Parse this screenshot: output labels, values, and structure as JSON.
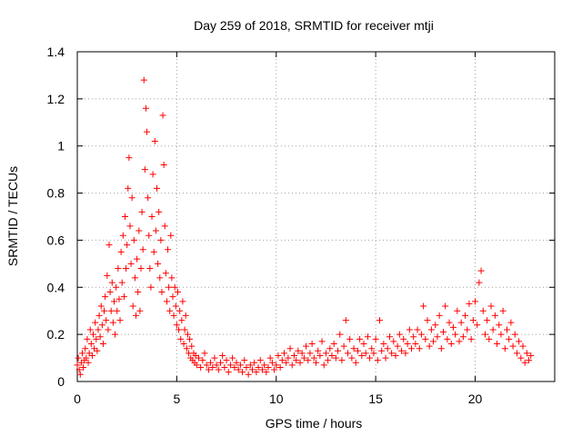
{
  "chart_data": {
    "type": "scatter",
    "title": "Day 259 of 2018, SRMTID for receiver mtji",
    "xlabel": "GPS time / hours",
    "ylabel": "SRMTID / TECUs",
    "xlim": [
      0,
      24
    ],
    "ylim": [
      0,
      1.4
    ],
    "xticks": [
      0,
      5,
      10,
      15,
      20
    ],
    "xtick_labels": [
      "0",
      "5",
      "10",
      "15",
      "20"
    ],
    "yticks": [
      0,
      0.2,
      0.4,
      0.6,
      0.8,
      1.0,
      1.2,
      1.4
    ],
    "ytick_labels": [
      "0",
      "0.2",
      "0.4",
      "0.6",
      "0.8",
      "1",
      "1.2",
      "1.4"
    ],
    "grid": true,
    "marker": "+",
    "marker_color": "#ff0000",
    "series": [
      {
        "name": "SRMTID",
        "points": [
          [
            0.0,
            0.07
          ],
          [
            0.05,
            0.1
          ],
          [
            0.1,
            0.05
          ],
          [
            0.15,
            0.03
          ],
          [
            0.2,
            0.08
          ],
          [
            0.25,
            0.12
          ],
          [
            0.3,
            0.06
          ],
          [
            0.35,
            0.09
          ],
          [
            0.4,
            0.14
          ],
          [
            0.45,
            0.1
          ],
          [
            0.5,
            0.18
          ],
          [
            0.55,
            0.08
          ],
          [
            0.6,
            0.12
          ],
          [
            0.65,
            0.22
          ],
          [
            0.7,
            0.16
          ],
          [
            0.75,
            0.11
          ],
          [
            0.8,
            0.2
          ],
          [
            0.85,
            0.14
          ],
          [
            0.9,
            0.25
          ],
          [
            0.95,
            0.18
          ],
          [
            1.0,
            0.13
          ],
          [
            1.05,
            0.22
          ],
          [
            1.1,
            0.28
          ],
          [
            1.15,
            0.19
          ],
          [
            1.2,
            0.32
          ],
          [
            1.25,
            0.24
          ],
          [
            1.3,
            0.16
          ],
          [
            1.35,
            0.3
          ],
          [
            1.4,
            0.36
          ],
          [
            1.45,
            0.26
          ],
          [
            1.5,
            0.45
          ],
          [
            1.55,
            0.22
          ],
          [
            1.6,
            0.58
          ],
          [
            1.65,
            0.38
          ],
          [
            1.7,
            0.3
          ],
          [
            1.75,
            0.42
          ],
          [
            1.8,
            0.25
          ],
          [
            1.85,
            0.34
          ],
          [
            1.9,
            0.2
          ],
          [
            1.95,
            0.4
          ],
          [
            2.0,
            0.3
          ],
          [
            2.05,
            0.48
          ],
          [
            2.1,
            0.35
          ],
          [
            2.15,
            0.26
          ],
          [
            2.2,
            0.55
          ],
          [
            2.25,
            0.42
          ],
          [
            2.3,
            0.62
          ],
          [
            2.35,
            0.36
          ],
          [
            2.4,
            0.7
          ],
          [
            2.45,
            0.48
          ],
          [
            2.5,
            0.58
          ],
          [
            2.55,
            0.82
          ],
          [
            2.6,
            0.95
          ],
          [
            2.65,
            0.66
          ],
          [
            2.7,
            0.5
          ],
          [
            2.75,
            0.78
          ],
          [
            2.8,
            0.32
          ],
          [
            2.85,
            0.6
          ],
          [
            2.9,
            0.44
          ],
          [
            2.95,
            0.28
          ],
          [
            3.0,
            0.52
          ],
          [
            3.05,
            0.38
          ],
          [
            3.1,
            0.64
          ],
          [
            3.15,
            0.3
          ],
          [
            3.2,
            0.48
          ],
          [
            3.25,
            0.72
          ],
          [
            3.3,
            0.56
          ],
          [
            3.35,
            1.28
          ],
          [
            3.4,
            0.9
          ],
          [
            3.45,
            1.16
          ],
          [
            3.5,
            1.06
          ],
          [
            3.55,
            0.78
          ],
          [
            3.6,
            0.62
          ],
          [
            3.65,
            0.48
          ],
          [
            3.7,
            0.4
          ],
          [
            3.75,
            0.7
          ],
          [
            3.8,
            0.88
          ],
          [
            3.85,
            0.55
          ],
          [
            3.9,
            1.02
          ],
          [
            3.95,
            0.64
          ],
          [
            4.0,
            0.82
          ],
          [
            4.05,
            0.5
          ],
          [
            4.1,
            0.72
          ],
          [
            4.15,
            0.44
          ],
          [
            4.2,
            0.6
          ],
          [
            4.25,
            0.38
          ],
          [
            4.3,
            1.13
          ],
          [
            4.35,
            0.92
          ],
          [
            4.4,
            0.66
          ],
          [
            4.45,
            0.46
          ],
          [
            4.5,
            0.34
          ],
          [
            4.55,
            0.56
          ],
          [
            4.6,
            0.4
          ],
          [
            4.65,
            0.3
          ],
          [
            4.7,
            0.62
          ],
          [
            4.75,
            0.44
          ],
          [
            4.8,
            0.36
          ],
          [
            4.85,
            0.28
          ],
          [
            4.9,
            0.4
          ],
          [
            4.95,
            0.32
          ],
          [
            5.0,
            0.24
          ],
          [
            5.05,
            0.38
          ],
          [
            5.1,
            0.22
          ],
          [
            5.15,
            0.3
          ],
          [
            5.2,
            0.18
          ],
          [
            5.25,
            0.26
          ],
          [
            5.3,
            0.34
          ],
          [
            5.35,
            0.16
          ],
          [
            5.4,
            0.22
          ],
          [
            5.45,
            0.28
          ],
          [
            5.5,
            0.14
          ],
          [
            5.55,
            0.2
          ],
          [
            5.6,
            0.12
          ],
          [
            5.65,
            0.18
          ],
          [
            5.7,
            0.1
          ],
          [
            5.75,
            0.15
          ],
          [
            5.8,
            0.09
          ],
          [
            5.85,
            0.12
          ],
          [
            5.9,
            0.08
          ],
          [
            5.95,
            0.11
          ],
          [
            6.0,
            0.07
          ],
          [
            6.1,
            0.1
          ],
          [
            6.2,
            0.06
          ],
          [
            6.3,
            0.09
          ],
          [
            6.4,
            0.12
          ],
          [
            6.5,
            0.07
          ],
          [
            6.6,
            0.05
          ],
          [
            6.7,
            0.08
          ],
          [
            6.8,
            0.06
          ],
          [
            6.9,
            0.1
          ],
          [
            7.0,
            0.07
          ],
          [
            7.1,
            0.05
          ],
          [
            7.2,
            0.08
          ],
          [
            7.3,
            0.11
          ],
          [
            7.4,
            0.06
          ],
          [
            7.5,
            0.09
          ],
          [
            7.6,
            0.04
          ],
          [
            7.7,
            0.07
          ],
          [
            7.8,
            0.1
          ],
          [
            7.9,
            0.06
          ],
          [
            8.0,
            0.08
          ],
          [
            8.1,
            0.05
          ],
          [
            8.2,
            0.07
          ],
          [
            8.3,
            0.04
          ],
          [
            8.4,
            0.09
          ],
          [
            8.5,
            0.06
          ],
          [
            8.6,
            0.03
          ],
          [
            8.7,
            0.07
          ],
          [
            8.8,
            0.05
          ],
          [
            8.9,
            0.08
          ],
          [
            9.0,
            0.04
          ],
          [
            9.1,
            0.06
          ],
          [
            9.2,
            0.09
          ],
          [
            9.3,
            0.05
          ],
          [
            9.4,
            0.07
          ],
          [
            9.5,
            0.04
          ],
          [
            9.6,
            0.06
          ],
          [
            9.7,
            0.1
          ],
          [
            9.8,
            0.08
          ],
          [
            9.9,
            0.05
          ],
          [
            10.0,
            0.07
          ],
          [
            10.1,
            0.11
          ],
          [
            10.2,
            0.06
          ],
          [
            10.3,
            0.09
          ],
          [
            10.4,
            0.12
          ],
          [
            10.5,
            0.08
          ],
          [
            10.6,
            0.1
          ],
          [
            10.7,
            0.14
          ],
          [
            10.8,
            0.07
          ],
          [
            10.9,
            0.11
          ],
          [
            11.0,
            0.09
          ],
          [
            11.1,
            0.13
          ],
          [
            11.2,
            0.08
          ],
          [
            11.3,
            0.12
          ],
          [
            11.4,
            0.1
          ],
          [
            11.5,
            0.15
          ],
          [
            11.6,
            0.09
          ],
          [
            11.7,
            0.12
          ],
          [
            11.8,
            0.16
          ],
          [
            11.9,
            0.1
          ],
          [
            12.0,
            0.08
          ],
          [
            12.1,
            0.13
          ],
          [
            12.2,
            0.11
          ],
          [
            12.3,
            0.17
          ],
          [
            12.4,
            0.07
          ],
          [
            12.5,
            0.12
          ],
          [
            12.6,
            0.09
          ],
          [
            12.7,
            0.14
          ],
          [
            12.8,
            0.11
          ],
          [
            12.9,
            0.16
          ],
          [
            13.0,
            0.1
          ],
          [
            13.1,
            0.13
          ],
          [
            13.2,
            0.2
          ],
          [
            13.3,
            0.09
          ],
          [
            13.4,
            0.15
          ],
          [
            13.5,
            0.26
          ],
          [
            13.6,
            0.12
          ],
          [
            13.7,
            0.18
          ],
          [
            13.8,
            0.1
          ],
          [
            13.9,
            0.14
          ],
          [
            14.0,
            0.08
          ],
          [
            14.1,
            0.13
          ],
          [
            14.2,
            0.18
          ],
          [
            14.3,
            0.11
          ],
          [
            14.4,
            0.16
          ],
          [
            14.5,
            0.12
          ],
          [
            14.6,
            0.19
          ],
          [
            14.7,
            0.1
          ],
          [
            14.8,
            0.14
          ],
          [
            14.9,
            0.12
          ],
          [
            15.0,
            0.18
          ],
          [
            15.1,
            0.09
          ],
          [
            15.2,
            0.26
          ],
          [
            15.3,
            0.13
          ],
          [
            15.4,
            0.16
          ],
          [
            15.5,
            0.1
          ],
          [
            15.6,
            0.14
          ],
          [
            15.7,
            0.19
          ],
          [
            15.8,
            0.12
          ],
          [
            15.9,
            0.17
          ],
          [
            16.0,
            0.11
          ],
          [
            16.1,
            0.15
          ],
          [
            16.2,
            0.2
          ],
          [
            16.3,
            0.13
          ],
          [
            16.4,
            0.18
          ],
          [
            16.5,
            0.12
          ],
          [
            16.6,
            0.16
          ],
          [
            16.7,
            0.22
          ],
          [
            16.8,
            0.14
          ],
          [
            16.9,
            0.19
          ],
          [
            17.0,
            0.16
          ],
          [
            17.1,
            0.22
          ],
          [
            17.2,
            0.14
          ],
          [
            17.3,
            0.2
          ],
          [
            17.4,
            0.32
          ],
          [
            17.5,
            0.18
          ],
          [
            17.6,
            0.26
          ],
          [
            17.7,
            0.15
          ],
          [
            17.8,
            0.22
          ],
          [
            17.9,
            0.17
          ],
          [
            18.0,
            0.24
          ],
          [
            18.1,
            0.19
          ],
          [
            18.2,
            0.28
          ],
          [
            18.3,
            0.14
          ],
          [
            18.4,
            0.21
          ],
          [
            18.5,
            0.32
          ],
          [
            18.6,
            0.18
          ],
          [
            18.7,
            0.25
          ],
          [
            18.8,
            0.16
          ],
          [
            18.9,
            0.23
          ],
          [
            19.0,
            0.2
          ],
          [
            19.1,
            0.3
          ],
          [
            19.2,
            0.17
          ],
          [
            19.3,
            0.25
          ],
          [
            19.4,
            0.19
          ],
          [
            19.5,
            0.28
          ],
          [
            19.6,
            0.22
          ],
          [
            19.7,
            0.33
          ],
          [
            19.8,
            0.18
          ],
          [
            19.9,
            0.26
          ],
          [
            20.0,
            0.34
          ],
          [
            20.1,
            0.24
          ],
          [
            20.2,
            0.42
          ],
          [
            20.3,
            0.47
          ],
          [
            20.4,
            0.3
          ],
          [
            20.5,
            0.2
          ],
          [
            20.6,
            0.26
          ],
          [
            20.7,
            0.18
          ],
          [
            20.8,
            0.32
          ],
          [
            20.9,
            0.22
          ],
          [
            21.0,
            0.28
          ],
          [
            21.1,
            0.16
          ],
          [
            21.2,
            0.24
          ],
          [
            21.3,
            0.2
          ],
          [
            21.4,
            0.3
          ],
          [
            21.5,
            0.14
          ],
          [
            21.6,
            0.22
          ],
          [
            21.7,
            0.18
          ],
          [
            21.8,
            0.25
          ],
          [
            21.9,
            0.15
          ],
          [
            22.0,
            0.2
          ],
          [
            22.1,
            0.12
          ],
          [
            22.2,
            0.17
          ],
          [
            22.3,
            0.1
          ],
          [
            22.4,
            0.15
          ],
          [
            22.5,
            0.08
          ],
          [
            22.6,
            0.12
          ],
          [
            22.7,
            0.09
          ],
          [
            22.8,
            0.11
          ]
        ]
      }
    ]
  }
}
